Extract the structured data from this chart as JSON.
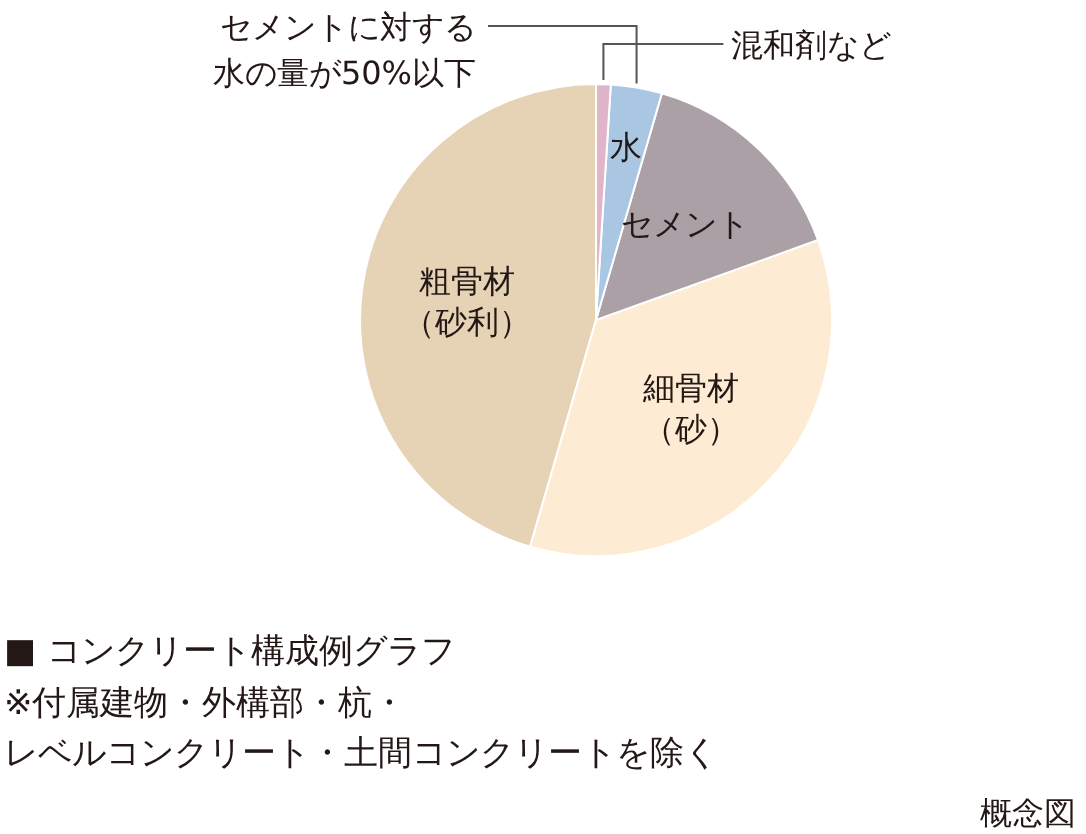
{
  "chart_data": {
    "type": "pie",
    "title": "■ コンクリート構成例グラフ",
    "categories": [
      "粗骨材（砂利）",
      "細骨材（砂）",
      "セメント",
      "水",
      "混和剤など"
    ],
    "values": [
      45.5,
      35,
      15,
      3.5,
      1
    ],
    "colors": [
      "#e6d3b5",
      "#fdecd3",
      "#aba0a5",
      "#a9c7e3",
      "#e0b4c9"
    ],
    "annotations": [
      {
        "text": "セメントに対する水の量が50%以下",
        "x": "水"
      },
      "※付属建物・外構部・杭・",
      "レベルコンクリート・土間コンクリートを除く",
      "概念図"
    ]
  }
}
